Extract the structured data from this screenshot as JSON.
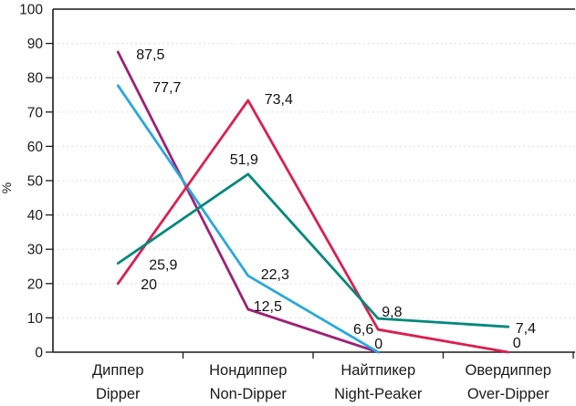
{
  "chart_data": {
    "type": "line",
    "title": "",
    "ylabel": "%",
    "xlabel": "",
    "ylim": [
      0,
      100
    ],
    "ytick_step": 10,
    "yticks": [
      0,
      10,
      20,
      30,
      40,
      50,
      60,
      70,
      80,
      90,
      100
    ],
    "grid": "horizontal-dashed",
    "legend": "none",
    "decimal_separator": ",",
    "categories": [
      {
        "label_ru": "Диппер",
        "label_en": "Dipper"
      },
      {
        "label_ru": "Нондиппер",
        "label_en": "Non-Dipper"
      },
      {
        "label_ru": "Найтпикер",
        "label_en": "Night-Peaker"
      },
      {
        "label_ru": "Овердиппер",
        "label_en": "Over-Dipper"
      }
    ],
    "series": [
      {
        "name": "magenta-line",
        "color": "#9E2076",
        "values": [
          87.5,
          12.5,
          0,
          null
        ],
        "point_labels": [
          "87,5",
          "12,5",
          "0",
          null
        ]
      },
      {
        "name": "cyan-line",
        "color": "#29A8DC",
        "values": [
          77.7,
          22.3,
          0,
          null
        ],
        "point_labels": [
          "77,7",
          "22,3",
          null,
          null
        ]
      },
      {
        "name": "crimson-line",
        "color": "#DC1E50",
        "values": [
          20,
          73.4,
          6.6,
          0
        ],
        "point_labels": [
          "20",
          "73,4",
          "6,6",
          "0"
        ]
      },
      {
        "name": "teal-line",
        "color": "#00887B",
        "values": [
          25.9,
          51.9,
          9.8,
          7.4
        ],
        "point_labels": [
          "25,9",
          "51,9",
          "9,8",
          "7,4"
        ]
      }
    ],
    "colors": {
      "axis": "#1A1A1A",
      "grid": "#E4E4E4",
      "text": "#1A1A1A",
      "background": "#FFFFFF"
    }
  }
}
